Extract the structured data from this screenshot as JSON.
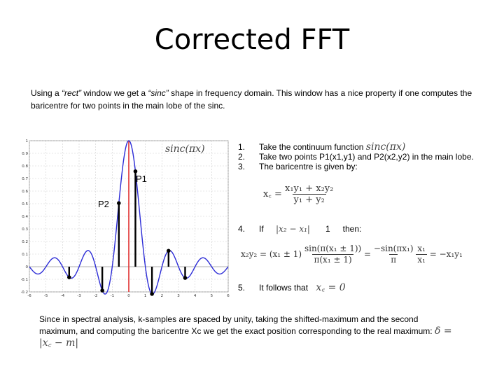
{
  "title": "Corrected FFT",
  "intro": {
    "part1": "Using a ",
    "rect": "“rect”",
    "part2": " window we get a ",
    "sinc": "“sinc”",
    "part3": " shape in frequency domain. This window has a nice property if one computes the baricentre for two points in the main lobe of the sinc."
  },
  "plot": {
    "legend": "sinc(πx)",
    "point_labels": [
      "P1",
      "P2"
    ],
    "y_ticks": [
      "1",
      "0.9",
      "0.8",
      "0.7",
      "0.6",
      "0.5",
      "0.4",
      "0.3",
      "0.2",
      "0.1",
      "0",
      "-0.1",
      "-0.2"
    ],
    "x_ticks": [
      "-6",
      "-5",
      "-4",
      "-3",
      "-2",
      "-1",
      "0",
      "1",
      "2",
      "3",
      "4",
      "5",
      "6"
    ],
    "colors": {
      "curve": "#2b2bd6",
      "axis_line": "#e03030",
      "samples": "#000000"
    }
  },
  "steps": [
    {
      "num": "1.",
      "text": "Take the continuum function",
      "math": "sinc(πx)"
    },
    {
      "num": "2.",
      "text": "Take two points P1(x1,y1) and P2(x2,y2) in the main lobe."
    },
    {
      "num": "3.",
      "text": "The baricentre is given by:"
    },
    {
      "num": "4.",
      "text": "If",
      "math": "|x₂ − x₁|",
      "text2": "1",
      "text3": "then:"
    },
    {
      "num": "5.",
      "text": "It follows that",
      "math": "x꜀ = 0"
    }
  ],
  "formulas": {
    "centroid_lhs": "x꜀ =",
    "centroid_num": "x₁y₁ + x₂y₂",
    "centroid_den": "y₁ + y₂",
    "eq4_left": "x₂y₂ = (x₁ ± 1)",
    "eq4_num": "sin(π(x₁ ± 1))",
    "eq4_den": "π(x₁ ± 1)",
    "eq4_eq": "=",
    "eq4_num2": "−sin(πx₁)",
    "eq4_den2": "π",
    "eq4_num3": "x₁",
    "eq4_den3": "x₁",
    "eq4_right": "= −x₁y₁"
  },
  "bottom": {
    "text": "Since in spectral analysis, k-samples are spaced by unity, taking the shifted-maximum and the second maximum,  and computing the baricentre Xc we get the exact position corresponding to the real maximum:",
    "math": "δ = |x꜀ − m|"
  }
}
